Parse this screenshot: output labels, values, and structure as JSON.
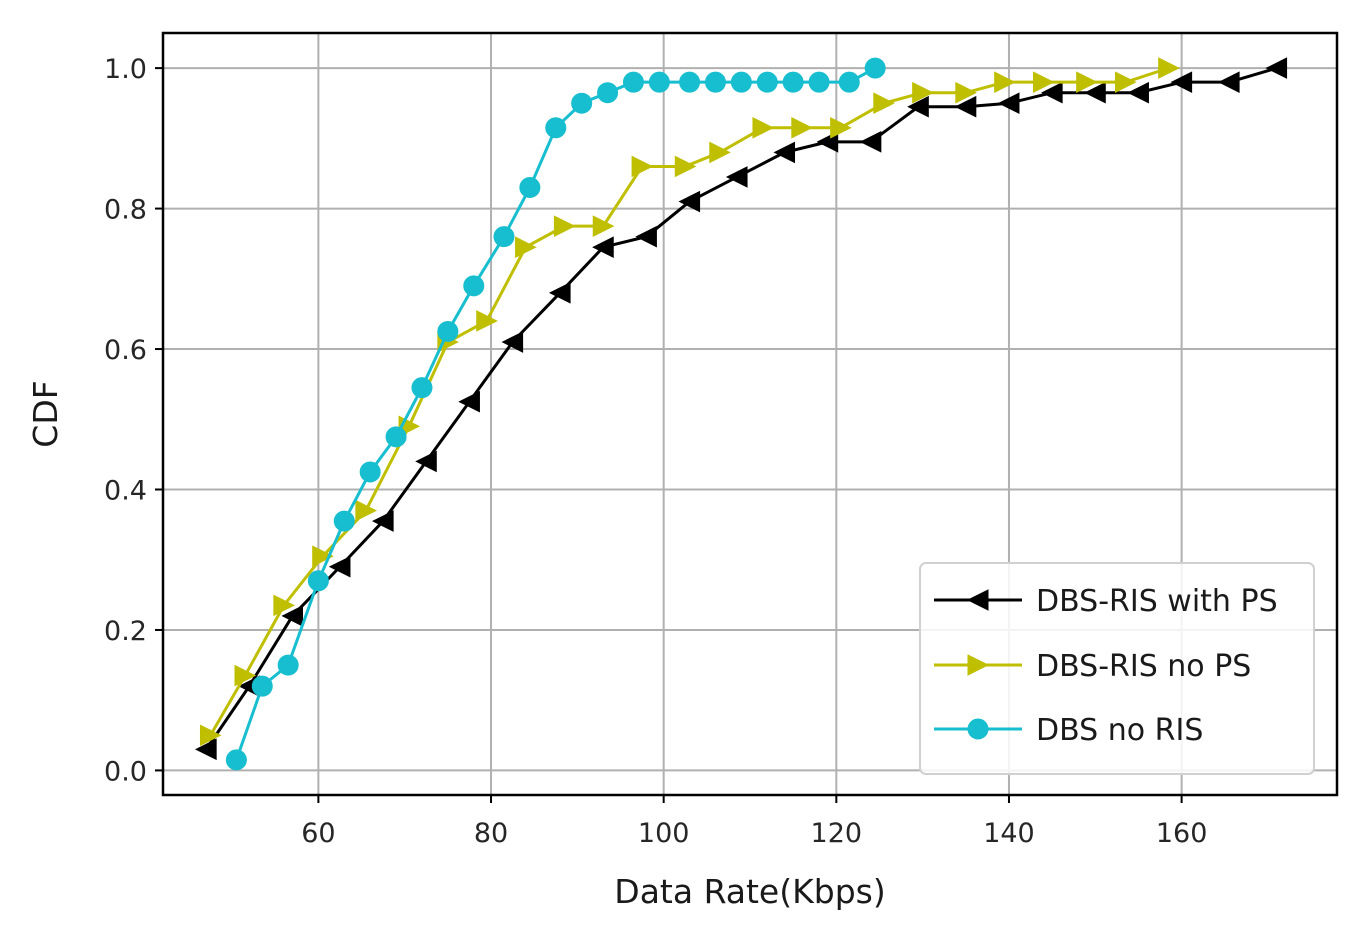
{
  "chart_data": {
    "type": "line",
    "title": "",
    "xlabel": "Data Rate(Kbps)",
    "ylabel": "CDF",
    "xlim": [
      42,
      178
    ],
    "ylim": [
      -0.035,
      1.05
    ],
    "xticks": [
      60,
      80,
      100,
      120,
      140,
      160
    ],
    "yticks": [
      0.0,
      0.2,
      0.4,
      0.6,
      0.8,
      1.0
    ],
    "xtick_labels": [
      "60",
      "80",
      "100",
      "120",
      "140",
      "160"
    ],
    "ytick_labels": [
      "0.0",
      "0.2",
      "0.4",
      "0.6",
      "0.8",
      "1.0"
    ],
    "grid": true,
    "legend_position": "lower-right",
    "series": [
      {
        "name": "DBS-RIS with PS",
        "color": "#000000",
        "marker": "triangle-left",
        "x": [
          47,
          52,
          57,
          62.5,
          67.5,
          72.5,
          77.5,
          82.5,
          88,
          93,
          98,
          103,
          108.5,
          114,
          119,
          124,
          129.5,
          135,
          140,
          145,
          150,
          155,
          160,
          165.5,
          171
        ],
        "y": [
          0.03,
          0.12,
          0.22,
          0.29,
          0.355,
          0.44,
          0.525,
          0.61,
          0.68,
          0.745,
          0.76,
          0.81,
          0.845,
          0.88,
          0.895,
          0.895,
          0.945,
          0.945,
          0.95,
          0.965,
          0.965,
          0.965,
          0.98,
          0.98,
          1.0
        ]
      },
      {
        "name": "DBS-RIS no PS",
        "color": "#bfbf00",
        "marker": "triangle-right",
        "x": [
          47.5,
          51.5,
          56,
          60.5,
          65.5,
          70.5,
          75,
          79.5,
          84,
          88.5,
          93,
          97.5,
          102.5,
          106.5,
          111.5,
          116,
          120.5,
          125.5,
          130,
          135,
          139.5,
          144,
          149,
          153.5,
          158.5
        ],
        "y": [
          0.05,
          0.135,
          0.235,
          0.305,
          0.37,
          0.49,
          0.61,
          0.64,
          0.745,
          0.775,
          0.775,
          0.86,
          0.86,
          0.88,
          0.915,
          0.915,
          0.915,
          0.95,
          0.965,
          0.965,
          0.98,
          0.98,
          0.98,
          0.98,
          1.0
        ]
      },
      {
        "name": "DBS no RIS",
        "color": "#17becf",
        "marker": "circle",
        "x": [
          50.5,
          53.5,
          56.5,
          60,
          63,
          66,
          69,
          72,
          75,
          78,
          81.5,
          84.5,
          87.5,
          90.5,
          93.5,
          96.5,
          99.5,
          103,
          106,
          109,
          112,
          115,
          118,
          121.5,
          124.5
        ],
        "y": [
          0.015,
          0.12,
          0.15,
          0.27,
          0.355,
          0.425,
          0.475,
          0.545,
          0.625,
          0.69,
          0.76,
          0.83,
          0.915,
          0.95,
          0.965,
          0.98,
          0.98,
          0.98,
          0.98,
          0.98,
          0.98,
          0.98,
          0.98,
          0.98,
          1.0
        ]
      }
    ]
  }
}
